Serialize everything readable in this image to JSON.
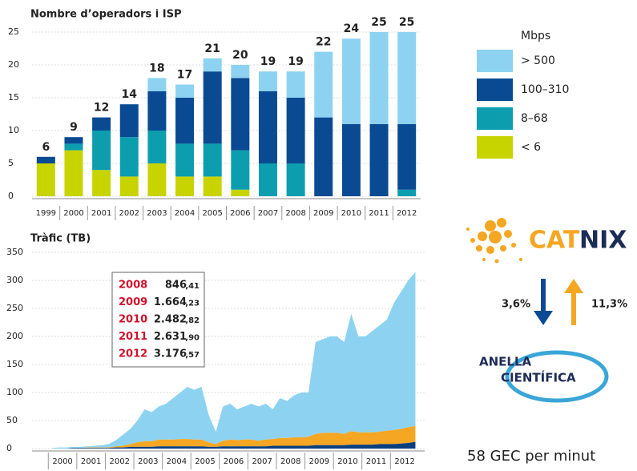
{
  "chart_data": [
    {
      "type": "stacked-bar",
      "title": "Nombre d’operadors i ISP",
      "categories": [
        "1999",
        "2000",
        "2001",
        "2002",
        "2003",
        "2004",
        "2005",
        "2006",
        "2007",
        "2008",
        "2009",
        "2010",
        "2011",
        "2012"
      ],
      "series": [
        {
          "name": "< 6",
          "color": "#c8d400",
          "values": [
            5,
            7,
            4,
            3,
            5,
            3,
            3,
            1,
            0,
            0,
            0,
            0,
            0,
            0
          ]
        },
        {
          "name": "8–68",
          "color": "#0c9eaf",
          "values": [
            0,
            1,
            6,
            6,
            5,
            5,
            5,
            6,
            5,
            5,
            0,
            0,
            0,
            1
          ]
        },
        {
          "name": "100–310",
          "color": "#0a4a93",
          "values": [
            1,
            1,
            2,
            5,
            6,
            7,
            11,
            11,
            11,
            10,
            12,
            11,
            11,
            10
          ]
        },
        {
          "name": "> 500",
          "color": "#8dd3f1",
          "values": [
            0,
            0,
            0,
            0,
            2,
            2,
            2,
            2,
            3,
            4,
            10,
            13,
            14,
            14
          ]
        }
      ],
      "totals": [
        6,
        9,
        12,
        14,
        18,
        17,
        21,
        20,
        19,
        19,
        22,
        24,
        25,
        25
      ],
      "legend_title": "Mbps",
      "ylim": [
        0,
        25
      ],
      "yticks": [
        0,
        5,
        10,
        15,
        20,
        25
      ],
      "grid": true
    },
    {
      "type": "stacked-area",
      "title": "Tràfic (TB)",
      "x": [
        2000.125,
        2000.375,
        2000.625,
        2000.875,
        2001.125,
        2001.375,
        2001.625,
        2001.875,
        2002.125,
        2002.375,
        2002.625,
        2002.875,
        2003.125,
        2003.375,
        2003.625,
        2003.875,
        2004.125,
        2004.375,
        2004.625,
        2004.875,
        2005.125,
        2005.375,
        2005.625,
        2005.875,
        2006.125,
        2006.375,
        2006.625,
        2006.875,
        2007.125,
        2007.375,
        2007.625,
        2007.875,
        2008.125,
        2008.375,
        2008.625,
        2008.875,
        2009.125,
        2009.375,
        2009.625,
        2009.875,
        2010.125,
        2010.375,
        2010.625,
        2010.875,
        2011.125,
        2011.375,
        2011.625,
        2011.875,
        2012.125,
        2012.375,
        2012.625,
        2012.875
      ],
      "series": [
        {
          "color": "#0a3f7e",
          "values": [
            0,
            0,
            0,
            1,
            1,
            1,
            1,
            1,
            1,
            2,
            2,
            3,
            3,
            3,
            3,
            4,
            4,
            4,
            4,
            4,
            4,
            4,
            3,
            3,
            4,
            4,
            4,
            4,
            4,
            4,
            4,
            5,
            5,
            5,
            5,
            5,
            5,
            6,
            6,
            6,
            6,
            6,
            7,
            7,
            7,
            7,
            8,
            8,
            8,
            9,
            10,
            12
          ]
        },
        {
          "color": "#f5a623",
          "values": [
            0,
            0,
            0,
            0,
            0,
            1,
            1,
            1,
            1,
            2,
            3,
            5,
            8,
            10,
            10,
            12,
            12,
            12,
            13,
            13,
            12,
            12,
            8,
            5,
            10,
            12,
            11,
            12,
            12,
            10,
            12,
            12,
            14,
            14,
            15,
            15,
            16,
            20,
            22,
            22,
            22,
            20,
            24,
            22,
            22,
            22,
            22,
            24,
            25,
            26,
            28,
            28
          ]
        },
        {
          "color": "#8dd3f1",
          "values": [
            1,
            2,
            2,
            2,
            2,
            2,
            3,
            4,
            6,
            11,
            20,
            27,
            39,
            57,
            52,
            59,
            64,
            74,
            83,
            93,
            89,
            94,
            49,
            22,
            61,
            64,
            55,
            59,
            64,
            61,
            64,
            53,
            71,
            66,
            75,
            80,
            79,
            164,
            167,
            172,
            172,
            164,
            209,
            171,
            171,
            181,
            190,
            198,
            227,
            245,
            262,
            275
          ]
        }
      ],
      "table": [
        {
          "year": "2008",
          "value": "846",
          "decimals": ",41"
        },
        {
          "year": "2009",
          "value": "1.664",
          "decimals": ",23"
        },
        {
          "year": "2010",
          "value": "2.482",
          "decimals": ",82"
        },
        {
          "year": "2011",
          "value": "2.631",
          "decimals": ",90"
        },
        {
          "year": "2012",
          "value": "3.176",
          "decimals": ",57"
        }
      ],
      "xlim": [
        1999.43,
        2013.2
      ],
      "xticks": [
        {
          "value": 2000.5,
          "label": "2000"
        },
        {
          "value": 2001.5,
          "label": "2001"
        },
        {
          "value": 2002.5,
          "label": "2002"
        },
        {
          "value": 2003.5,
          "label": "2003"
        },
        {
          "value": 2004.5,
          "label": "2004"
        },
        {
          "value": 2005.5,
          "label": "2005"
        },
        {
          "value": 2006.5,
          "label": "2006"
        },
        {
          "value": 2007.5,
          "label": "2007"
        },
        {
          "value": 2008.5,
          "label": "2008"
        },
        {
          "value": 2009.5,
          "label": "2009"
        },
        {
          "value": 2010.5,
          "label": "2010"
        },
        {
          "value": 2011.5,
          "label": "2011"
        },
        {
          "value": 2012.5,
          "label": "2012"
        }
      ],
      "ylim": [
        0,
        350
      ],
      "yticks": [
        0,
        50,
        100,
        150,
        200,
        250,
        300,
        350
      ],
      "grid": true
    }
  ],
  "side": {
    "logo1_a": "CAT",
    "logo1_b": "NIX",
    "down": "3,6%",
    "up": "11,3%",
    "logo2_a": "ANELLA",
    "logo2_b": "CIENTÍFICA",
    "footer": "58 GEC per minut"
  }
}
